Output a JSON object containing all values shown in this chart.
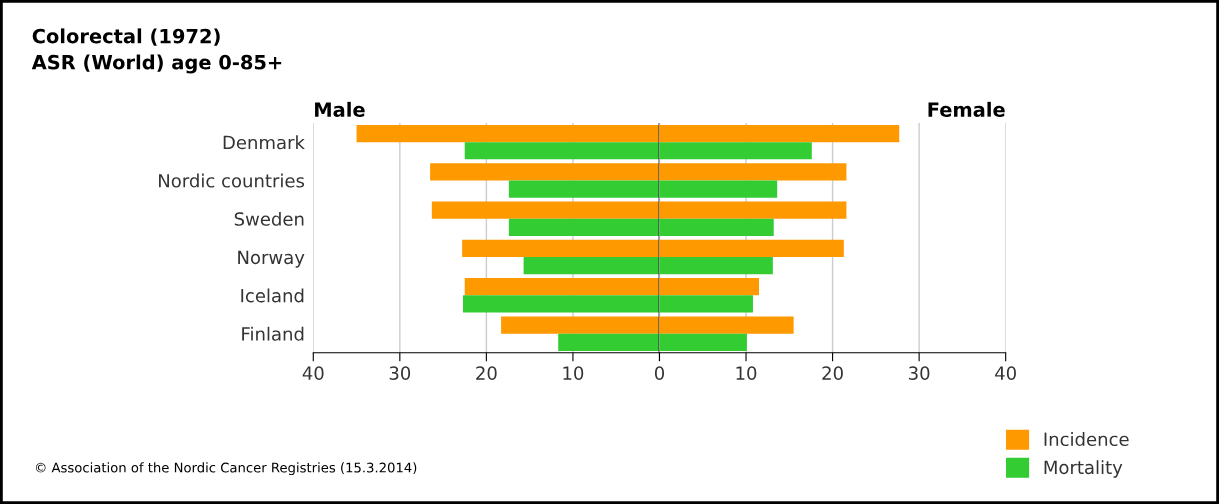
{
  "chart_data": [
    {
      "type": "bar",
      "orientation": "horizontal",
      "title": "Colorectal (1972)",
      "subtitle": "ASR (World) age 0-85+",
      "categories": [
        "Denmark",
        "Nordic countries",
        "Sweden",
        "Norway",
        "Iceland",
        "Finland"
      ],
      "series": [
        {
          "name": "Incidence",
          "color": "#ff9900",
          "values": [
            -35.0,
            -26.5,
            -26.3,
            -22.8,
            -22.5,
            -18.3
          ]
        },
        {
          "name": "Mortality",
          "color": "#33cc33",
          "values": [
            -22.5,
            -17.4,
            -17.4,
            -15.7,
            -22.7,
            -11.7
          ]
        }
      ],
      "xlim": [
        -40,
        0
      ],
      "xticks": [
        {
          "value": -40,
          "label": "40"
        },
        {
          "value": -30,
          "label": "30"
        },
        {
          "value": -20,
          "label": "20"
        },
        {
          "value": -10,
          "label": "10"
        },
        {
          "value": 0,
          "label": null
        }
      ],
      "ref_lines": [
        {
          "axis": "x",
          "value": 0,
          "color": "#000000"
        }
      ],
      "grid": "x",
      "legend": "bottom right",
      "annotations": [
        "Male",
        "© Association of the Nordic Cancer Registries (15.3.2014)"
      ]
    },
    {
      "type": "bar",
      "orientation": "horizontal",
      "series": [
        {
          "color": "#ff9900",
          "values": [
            27.7,
            21.6,
            21.6,
            21.3,
            11.5,
            15.5
          ]
        },
        {
          "color": "#33cc33",
          "values": [
            17.6,
            13.6,
            13.2,
            13.1,
            10.8,
            10.1
          ]
        }
      ],
      "xlim": [
        0,
        40
      ],
      "xticks": [
        0,
        10,
        20,
        30,
        40
      ],
      "grid": "x",
      "tick_labels": "x",
      "annotations": [
        "Female"
      ]
    }
  ]
}
